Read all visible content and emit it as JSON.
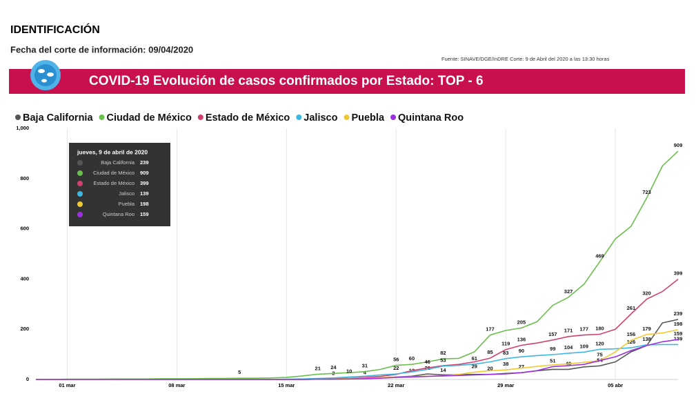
{
  "header": {
    "title": "IDENTIFICACIÓN",
    "date_line": "Fecha del corte de información: 09/04/2020",
    "source": "Fuente: SINAVE/DGE/InDRE Corte: 9 de Abril del 2020 a las 13:30 horas"
  },
  "tooltip_title": "jueves, 9 de abril de 2020",
  "chart_data": {
    "type": "line",
    "title": "COVID-19 Evolución de casos confirmados por Estado: TOP - 6",
    "categories": [
      null,
      null,
      "01 mar",
      null,
      null,
      null,
      null,
      null,
      null,
      "08 mar",
      null,
      null,
      null,
      null,
      null,
      null,
      "15 mar",
      null,
      null,
      null,
      null,
      null,
      null,
      "22 mar",
      null,
      null,
      null,
      null,
      null,
      null,
      "29 mar",
      null,
      null,
      null,
      null,
      null,
      null,
      "05 abr",
      null,
      null,
      null,
      null
    ],
    "ylim": [
      0,
      1000
    ],
    "yticks": [
      0,
      200,
      400,
      600,
      800,
      {
        "value": 1000,
        "label": "1,000"
      }
    ],
    "grid": true,
    "series": [
      {
        "name": "Baja California",
        "color": "#555555",
        "values": [
          0,
          0,
          0,
          0,
          0,
          0,
          0,
          0,
          0,
          0,
          0,
          0,
          0,
          0,
          0,
          0,
          0,
          0,
          1,
          2,
          3,
          4,
          6,
          10,
          13,
          22,
          18,
          19,
          20,
          20,
          24,
          27,
          35,
          40,
          40,
          50,
          54,
          70,
          110,
          135,
          225,
          239
        ],
        "value_labels": [
          null,
          null,
          null,
          null,
          null,
          null,
          null,
          null,
          null,
          null,
          null,
          null,
          null,
          null,
          null,
          null,
          null,
          null,
          null,
          "2",
          null,
          "4",
          null,
          null,
          "13",
          "22",
          null,
          null,
          null,
          "20",
          null,
          "27",
          null,
          null,
          "40",
          null,
          "54",
          null,
          null,
          null,
          null,
          "239"
        ]
      },
      {
        "name": "Ciudad de México",
        "color": "#6abf4b",
        "values": [
          0,
          0,
          1,
          1,
          1,
          2,
          2,
          2,
          3,
          3,
          3,
          4,
          4,
          5,
          5,
          6,
          8,
          14,
          21,
          24,
          27,
          31,
          40,
          56,
          60,
          70,
          82,
          84,
          110,
          177,
          195,
          205,
          230,
          295,
          327,
          380,
          469,
          560,
          610,
          723,
          850,
          909
        ],
        "value_labels": [
          null,
          null,
          null,
          null,
          null,
          null,
          null,
          null,
          null,
          null,
          null,
          null,
          null,
          "5",
          null,
          null,
          null,
          null,
          "21",
          "24",
          null,
          "31",
          null,
          "56",
          "60",
          null,
          "82",
          null,
          null,
          "177",
          null,
          "205",
          null,
          null,
          "327",
          null,
          "469",
          null,
          null,
          "723",
          null,
          "909"
        ]
      },
      {
        "name": "Estado de México",
        "color": "#d0406e",
        "values": [
          0,
          0,
          0,
          0,
          0,
          0,
          0,
          0,
          0,
          0,
          0,
          0,
          0,
          0,
          0,
          0,
          0,
          1,
          2,
          3,
          5,
          8,
          12,
          20,
          35,
          46,
          55,
          60,
          70,
          85,
          119,
          136,
          145,
          157,
          171,
          177,
          180,
          200,
          261,
          320,
          350,
          399
        ],
        "value_labels": [
          null,
          null,
          null,
          null,
          null,
          null,
          null,
          null,
          null,
          null,
          null,
          null,
          null,
          null,
          null,
          null,
          null,
          null,
          null,
          null,
          null,
          null,
          null,
          null,
          null,
          "46",
          null,
          null,
          null,
          "85",
          "119",
          "136",
          null,
          "157",
          "171",
          "177",
          "180",
          null,
          "261",
          "320",
          null,
          "399"
        ]
      },
      {
        "name": "Jalisco",
        "color": "#3db6e0",
        "values": [
          0,
          0,
          0,
          0,
          0,
          0,
          0,
          0,
          0,
          0,
          0,
          0,
          0,
          0,
          0,
          0,
          1,
          2,
          4,
          6,
          10,
          13,
          18,
          22,
          30,
          40,
          53,
          56,
          61,
          70,
          83,
          90,
          95,
          99,
          104,
          109,
          120,
          122,
          126,
          138,
          139,
          139
        ],
        "value_labels": [
          null,
          null,
          null,
          null,
          null,
          null,
          null,
          null,
          null,
          null,
          null,
          null,
          null,
          null,
          null,
          null,
          null,
          null,
          null,
          null,
          "10",
          null,
          null,
          "22",
          null,
          null,
          "53",
          null,
          "61",
          null,
          "83",
          "90",
          null,
          "99",
          "104",
          "109",
          "120",
          null,
          "126",
          "138",
          null,
          "139"
        ]
      },
      {
        "name": "Puebla",
        "color": "#f2c832",
        "values": [
          0,
          0,
          0,
          0,
          0,
          0,
          0,
          0,
          0,
          0,
          0,
          0,
          0,
          0,
          0,
          0,
          0,
          0,
          1,
          2,
          4,
          5,
          7,
          9,
          11,
          13,
          14,
          20,
          29,
          35,
          38,
          45,
          52,
          58,
          62,
          68,
          75,
          110,
          156,
          179,
          185,
          198
        ],
        "value_labels": [
          null,
          null,
          null,
          null,
          null,
          null,
          null,
          null,
          null,
          null,
          null,
          null,
          null,
          null,
          null,
          null,
          null,
          null,
          null,
          null,
          null,
          null,
          null,
          null,
          null,
          null,
          "14",
          null,
          "29",
          null,
          "38",
          null,
          null,
          null,
          null,
          null,
          "75",
          null,
          "156",
          "179",
          null,
          "198"
        ]
      },
      {
        "name": "Quintana Roo",
        "color": "#9b30e0",
        "values": [
          0,
          0,
          0,
          0,
          0,
          0,
          0,
          0,
          0,
          0,
          0,
          0,
          0,
          0,
          0,
          0,
          0,
          0,
          1,
          1,
          2,
          3,
          5,
          8,
          10,
          12,
          14,
          16,
          18,
          20,
          22,
          27,
          35,
          51,
          55,
          60,
          75,
          90,
          115,
          135,
          150,
          159
        ],
        "value_labels": [
          null,
          null,
          null,
          null,
          null,
          null,
          null,
          null,
          null,
          null,
          null,
          null,
          null,
          null,
          null,
          null,
          null,
          null,
          null,
          null,
          null,
          null,
          null,
          null,
          null,
          null,
          null,
          null,
          null,
          null,
          null,
          null,
          null,
          "51",
          null,
          null,
          null,
          null,
          null,
          null,
          null,
          "159"
        ]
      }
    ]
  }
}
